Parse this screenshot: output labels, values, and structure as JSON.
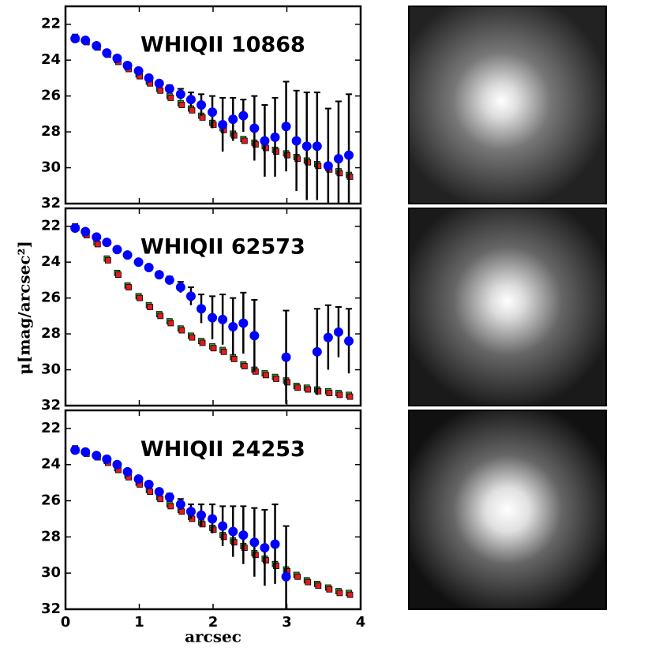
{
  "ylabel": "μ[mag/arcsec²]",
  "chart_data": [
    {
      "type": "scatter",
      "title": "WHIQII 10868",
      "x": [
        0.13,
        0.27,
        0.42,
        0.56,
        0.7,
        0.84,
        0.99,
        1.13,
        1.27,
        1.41,
        1.56,
        1.7,
        1.84,
        1.99,
        2.13,
        2.27,
        2.41,
        2.56,
        2.7,
        2.84,
        2.99,
        3.13,
        3.27,
        3.41,
        3.56,
        3.7,
        3.84
      ],
      "xlim": [
        0,
        4
      ],
      "xticks": [
        0,
        1,
        2,
        3,
        4
      ],
      "ylim": [
        21,
        32
      ],
      "yticks": [
        22,
        24,
        26,
        28,
        30,
        32
      ],
      "y_inverted": true,
      "series": [
        {
          "color": "#2ca02c",
          "marker": "square",
          "values": [
            22.7,
            22.9,
            23.2,
            23.6,
            24.0,
            24.4,
            24.8,
            25.2,
            25.6,
            26.0,
            26.4,
            26.7,
            27.1,
            27.5,
            27.8,
            28.1,
            28.4,
            28.6,
            28.8,
            29.0,
            29.2,
            29.4,
            29.6,
            29.8,
            30.0,
            30.2,
            30.4
          ]
        },
        {
          "color": "#e41a1c",
          "marker": "square",
          "values": [
            22.8,
            23.0,
            23.3,
            23.7,
            24.1,
            24.5,
            24.9,
            25.3,
            25.7,
            26.1,
            26.5,
            26.8,
            27.2,
            27.6,
            27.9,
            28.2,
            28.5,
            28.7,
            28.9,
            29.1,
            29.3,
            29.5,
            29.7,
            29.9,
            30.1,
            30.3,
            30.5
          ]
        },
        {
          "color": "#0000ff",
          "marker": "circle",
          "values": [
            22.8,
            22.9,
            23.2,
            23.6,
            23.9,
            24.3,
            24.6,
            25.0,
            25.3,
            25.6,
            25.9,
            26.2,
            26.5,
            26.9,
            27.6,
            27.3,
            27.1,
            27.8,
            28.5,
            28.3,
            27.7,
            28.5,
            28.8,
            28.8,
            29.9,
            29.5,
            29.3
          ],
          "errors": [
            0.1,
            0.1,
            0.1,
            0.1,
            0.1,
            0.1,
            0.1,
            0.1,
            0.15,
            0.2,
            0.3,
            0.4,
            0.6,
            0.9,
            1.5,
            1.2,
            0.9,
            1.8,
            2.0,
            2.2,
            2.5,
            2.8,
            3.0,
            3.0,
            3.2,
            3.2,
            3.4
          ]
        }
      ]
    },
    {
      "type": "scatter",
      "title": "WHIQII 62573",
      "x": [
        0.13,
        0.27,
        0.42,
        0.56,
        0.7,
        0.84,
        0.99,
        1.13,
        1.27,
        1.41,
        1.56,
        1.7,
        1.84,
        1.99,
        2.13,
        2.27,
        2.41,
        2.56,
        2.7,
        2.84,
        2.99,
        3.13,
        3.27,
        3.41,
        3.56,
        3.7,
        3.84
      ],
      "xlim": [
        0,
        4
      ],
      "xticks": [
        0,
        1,
        2,
        3,
        4
      ],
      "ylim": [
        21,
        32
      ],
      "yticks": [
        22,
        24,
        26,
        28,
        30,
        32
      ],
      "y_inverted": true,
      "series": [
        {
          "color": "#2ca02c",
          "marker": "square",
          "values": [
            22.0,
            22.4,
            22.9,
            23.8,
            24.6,
            25.3,
            25.9,
            26.4,
            26.9,
            27.3,
            27.7,
            28.1,
            28.4,
            28.7,
            28.9,
            29.3,
            29.7,
            30.0,
            30.2,
            30.4,
            30.6,
            30.9,
            31.0,
            31.1,
            31.2,
            31.3,
            31.4
          ]
        },
        {
          "color": "#e41a1c",
          "marker": "square",
          "values": [
            22.1,
            22.5,
            23.0,
            23.9,
            24.7,
            25.4,
            26.0,
            26.5,
            27.0,
            27.4,
            27.8,
            28.2,
            28.5,
            28.8,
            29.0,
            29.4,
            29.8,
            30.1,
            30.3,
            30.5,
            30.7,
            31.0,
            31.1,
            31.2,
            31.3,
            31.4,
            31.5
          ]
        },
        {
          "color": "#0000ff",
          "marker": "circle",
          "values": [
            22.1,
            22.3,
            22.6,
            22.9,
            23.3,
            23.6,
            24.0,
            24.3,
            24.7,
            25.0,
            25.4,
            25.9,
            26.6,
            27.1,
            27.2,
            27.6,
            27.4,
            28.1,
            null,
            null,
            29.3,
            null,
            null,
            29.0,
            28.2,
            27.9,
            28.4
          ],
          "errors": [
            0.1,
            0.1,
            0.1,
            0.1,
            0.1,
            0.1,
            0.1,
            0.1,
            0.15,
            0.2,
            0.3,
            0.5,
            0.8,
            1.2,
            1.4,
            1.6,
            1.7,
            2.0,
            null,
            null,
            2.6,
            null,
            null,
            2.4,
            1.8,
            1.4,
            1.8
          ]
        }
      ]
    },
    {
      "type": "scatter",
      "title": "WHIQII 24253",
      "xlabel": "arcsec",
      "x": [
        0.13,
        0.27,
        0.42,
        0.56,
        0.7,
        0.84,
        0.99,
        1.13,
        1.27,
        1.41,
        1.56,
        1.7,
        1.84,
        1.99,
        2.13,
        2.27,
        2.41,
        2.56,
        2.7,
        2.84,
        2.99,
        3.13,
        3.27,
        3.41,
        3.56,
        3.7,
        3.84
      ],
      "xlim": [
        0,
        4
      ],
      "xticks": [
        0,
        1,
        2,
        3,
        4
      ],
      "ylim": [
        21,
        32
      ],
      "yticks": [
        22,
        24,
        26,
        28,
        30,
        32
      ],
      "y_inverted": true,
      "series": [
        {
          "color": "#2ca02c",
          "marker": "square",
          "values": [
            23.1,
            23.3,
            23.5,
            23.8,
            24.2,
            24.6,
            25.0,
            25.4,
            25.8,
            26.2,
            26.5,
            26.9,
            27.2,
            27.5,
            27.9,
            28.2,
            28.5,
            28.9,
            29.2,
            29.5,
            29.8,
            30.1,
            30.4,
            30.6,
            30.8,
            31.0,
            31.1
          ]
        },
        {
          "color": "#e41a1c",
          "marker": "square",
          "values": [
            23.2,
            23.4,
            23.6,
            23.9,
            24.3,
            24.7,
            25.1,
            25.5,
            25.9,
            26.3,
            26.6,
            27.0,
            27.3,
            27.6,
            28.0,
            28.3,
            28.6,
            29.0,
            29.3,
            29.6,
            29.9,
            30.2,
            30.5,
            30.7,
            30.9,
            31.1,
            31.2
          ]
        },
        {
          "color": "#0000ff",
          "marker": "circle",
          "values": [
            23.2,
            23.3,
            23.5,
            23.7,
            24.0,
            24.4,
            24.8,
            25.1,
            25.5,
            25.8,
            26.2,
            26.6,
            26.8,
            27.0,
            27.4,
            27.7,
            27.9,
            28.3,
            28.6,
            28.4,
            30.2,
            null,
            null,
            null,
            null,
            null,
            null
          ],
          "errors": [
            0.1,
            0.1,
            0.1,
            0.1,
            0.1,
            0.1,
            0.1,
            0.1,
            0.15,
            0.2,
            0.3,
            0.4,
            0.6,
            0.8,
            1.1,
            1.4,
            1.6,
            1.9,
            2.1,
            2.2,
            2.8,
            null,
            null,
            null,
            null,
            null,
            null
          ]
        }
      ]
    }
  ]
}
